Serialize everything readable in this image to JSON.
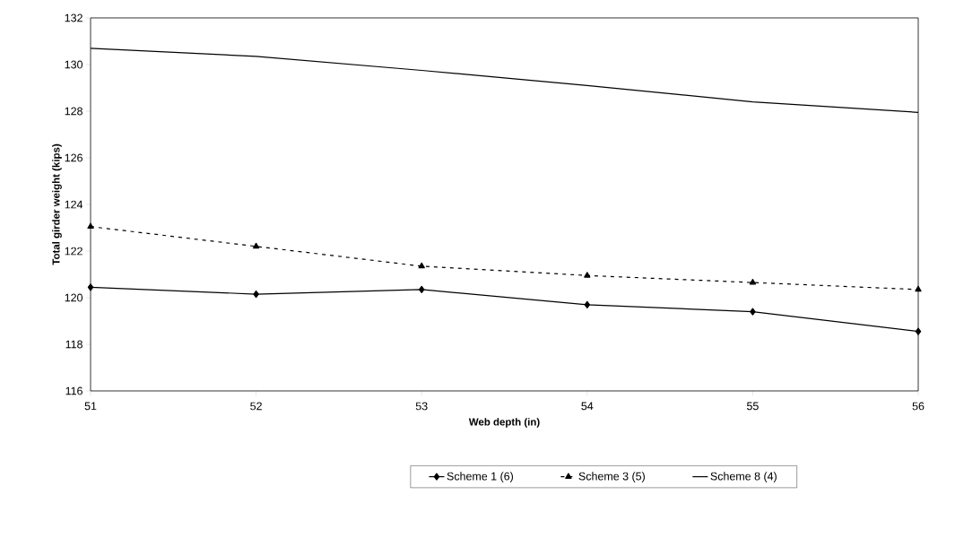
{
  "chart_data": {
    "type": "line",
    "xlabel": "Web depth (in)",
    "ylabel": "Total girder weight (kips)",
    "x": [
      51,
      52,
      53,
      54,
      55,
      56
    ],
    "series": [
      {
        "name": "Scheme 1 (6)",
        "color": "#000000",
        "marker": "diamond",
        "line_style": "solid",
        "values": [
          120.45,
          120.15,
          120.35,
          119.7,
          119.4,
          118.55
        ]
      },
      {
        "name": "Scheme 3 (5)",
        "color": "#000000",
        "marker": "triangle",
        "line_style": "dashed",
        "values": [
          123.05,
          122.2,
          121.35,
          120.95,
          120.65,
          120.35
        ]
      },
      {
        "name": "Scheme 8 (4)",
        "color": "#000000",
        "marker": "none",
        "line_style": "solid",
        "values": [
          130.7,
          130.35,
          129.75,
          129.1,
          128.4,
          127.95
        ]
      }
    ],
    "xlim": [
      51,
      56
    ],
    "xticks": [
      51,
      52,
      53,
      54,
      55,
      56
    ],
    "ylim": [
      116,
      132
    ],
    "yticks": [
      116,
      118,
      120,
      122,
      124,
      126,
      128,
      130,
      132
    ],
    "grid": false,
    "legend": "bottom"
  }
}
